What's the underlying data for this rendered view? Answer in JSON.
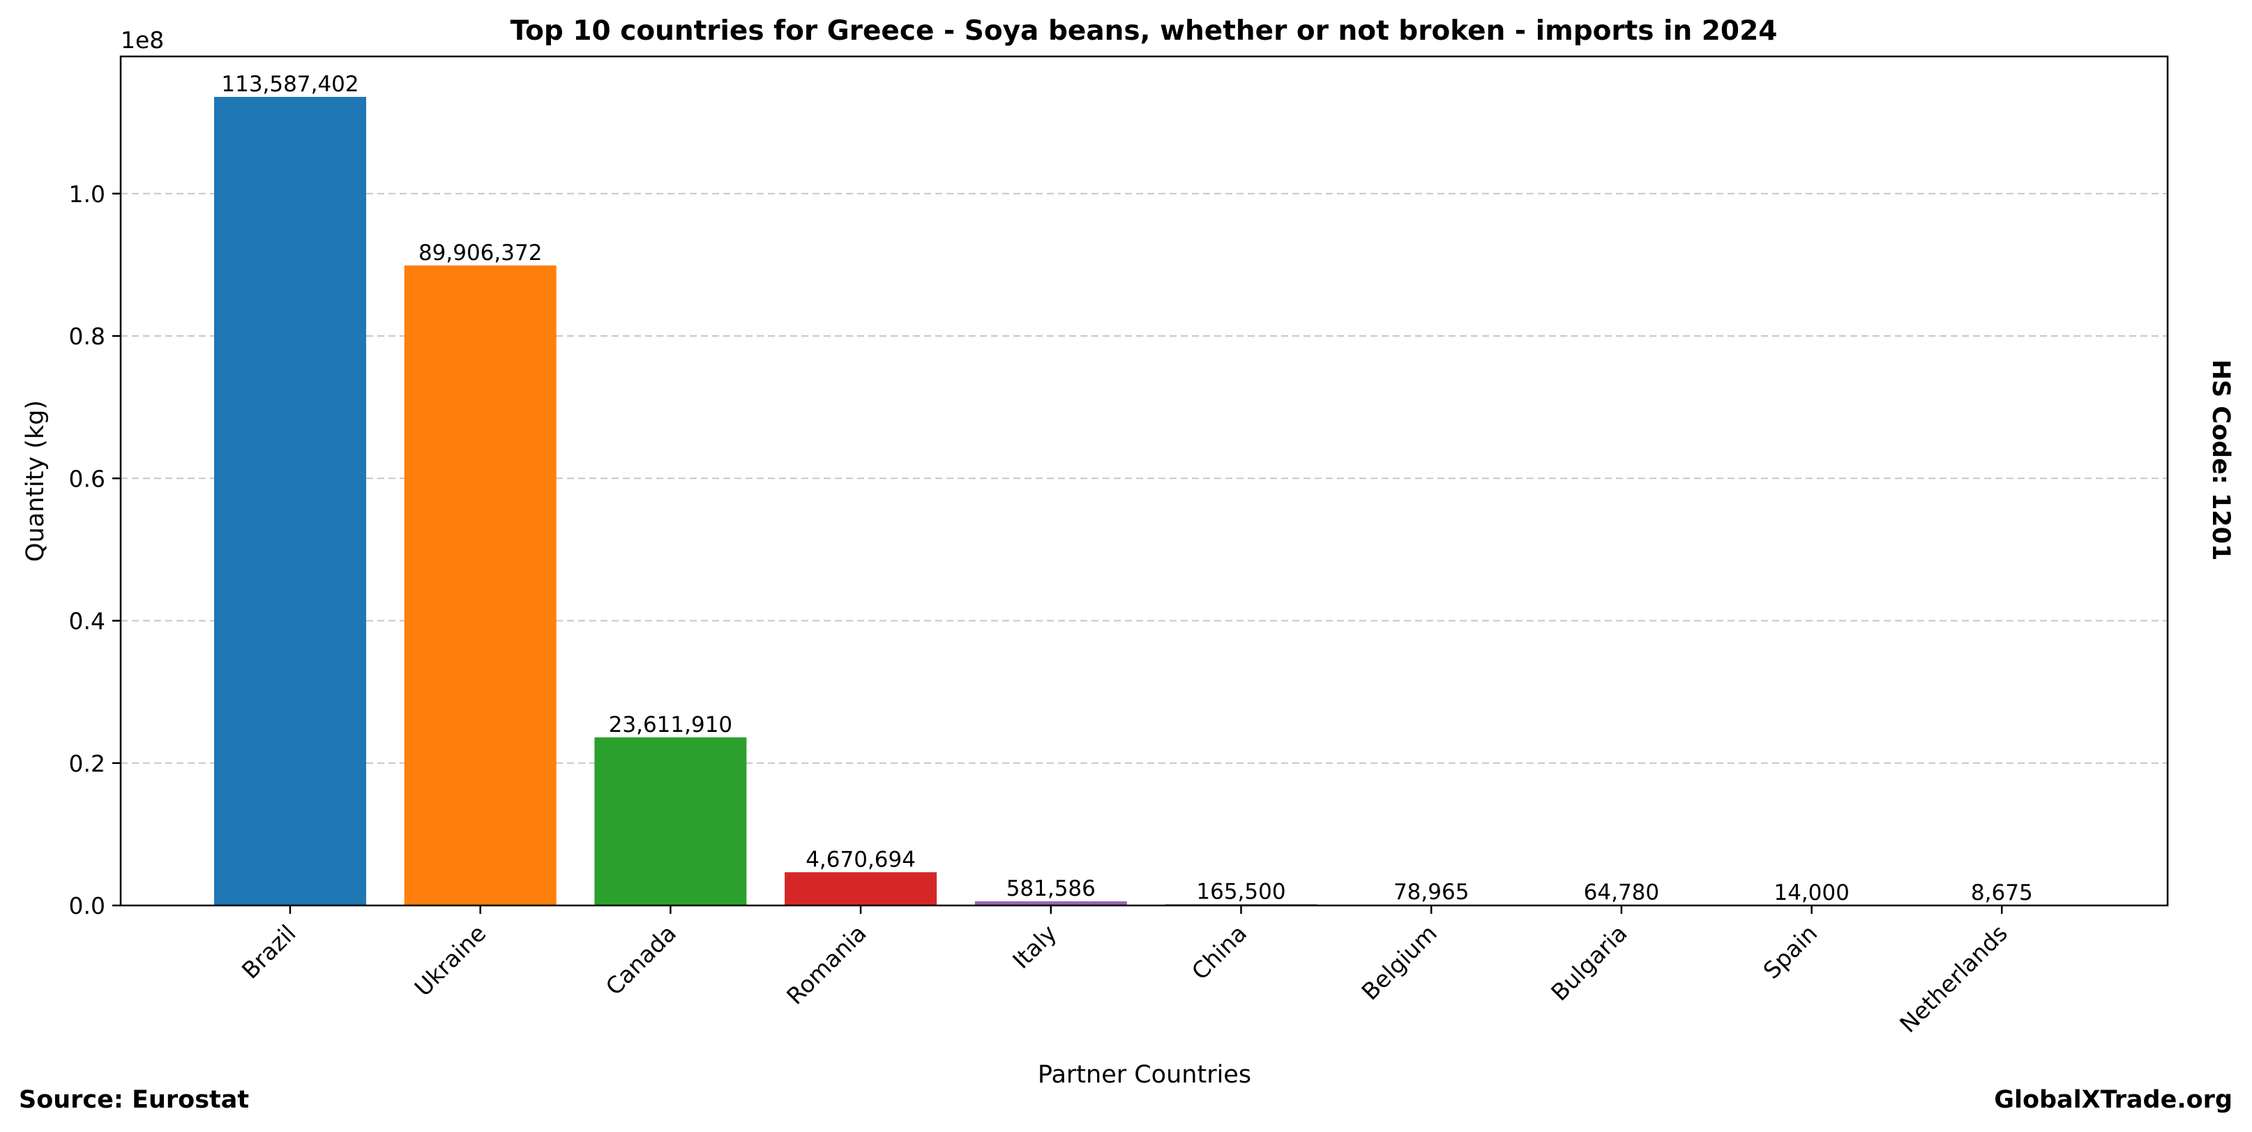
{
  "chart_data": {
    "type": "bar",
    "title": "Top 10 countries for Greece - Soya beans, whether or not broken - imports in 2024",
    "xlabel": "Partner Countries",
    "ylabel": "Quantity (kg)",
    "y_offset_label": "1e8",
    "side_label": "HS Code: 1201",
    "categories": [
      "Brazil",
      "Ukraine",
      "Canada",
      "Romania",
      "Italy",
      "China",
      "Belgium",
      "Bulgaria",
      "Spain",
      "Netherlands"
    ],
    "values": [
      113587402,
      89906372,
      23611910,
      4670694,
      581586,
      165500,
      78965,
      64780,
      14000,
      8675
    ],
    "value_labels": [
      "113,587,402",
      "89,906,372",
      "23,611,910",
      "4,670,694",
      "581,586",
      "165,500",
      "78,965",
      "64,780",
      "14,000",
      "8,675"
    ],
    "colors": [
      "#1f77b4",
      "#ff7f0e",
      "#2ca02c",
      "#d62728",
      "#9467bd",
      "#8c564b",
      "#e377c2",
      "#7f7f7f",
      "#bcbd22",
      "#17becf"
    ],
    "ylim": [
      0,
      119266772
    ],
    "yticks": [
      0,
      20000000,
      40000000,
      60000000,
      80000000,
      100000000
    ],
    "ytick_labels": [
      "0.0",
      "0.2",
      "0.4",
      "0.6",
      "0.8",
      "1.0"
    ],
    "grid": "y-dashed",
    "legend": "none"
  },
  "footer": {
    "source": "Source: Eurostat",
    "brand": "GlobalXTrade.org"
  }
}
